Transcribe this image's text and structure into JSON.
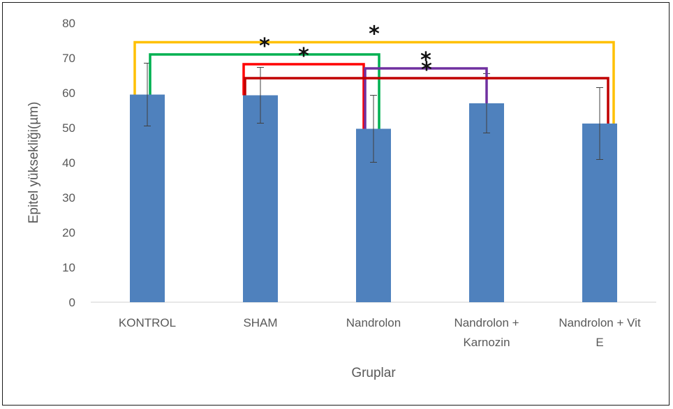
{
  "chart_data": {
    "type": "bar",
    "categories": [
      "KONTROL",
      "SHAM",
      "Nandrolon",
      "Nandrolon + Karnozin",
      "Nandrolon + Vit E"
    ],
    "category_lines": [
      [
        "KONTROL"
      ],
      [
        "SHAM"
      ],
      [
        "Nandrolon"
      ],
      [
        "Nandrolon +",
        "Karnozin"
      ],
      [
        "Nandrolon + Vit",
        "E"
      ]
    ],
    "values": [
      59.5,
      59.3,
      49.7,
      57.0,
      51.2
    ],
    "errors": [
      9.0,
      8.0,
      9.6,
      8.5,
      10.3
    ],
    "xlabel": "Gruplar",
    "ylabel": "Epitel yüksekliği(µm)",
    "ylim": [
      0,
      80
    ],
    "yticks": [
      0,
      10,
      20,
      30,
      40,
      50,
      60,
      70,
      80
    ],
    "bar_color": "#4f81bd",
    "grid": false,
    "significance": [
      {
        "from": 0,
        "to": 4,
        "level": 74.5,
        "label": "*",
        "color": "#ffc000"
      },
      {
        "from": 0,
        "to": 2,
        "level": 71.0,
        "label": "*",
        "color": "#00b050"
      },
      {
        "from": 1,
        "to": 2,
        "level": 68.2,
        "label": "*",
        "color": "#ff0000"
      },
      {
        "from": 2,
        "to": 3,
        "level": 67.0,
        "label": "*",
        "color": "#7030a0"
      },
      {
        "from": 1,
        "to": 4,
        "level": 64.2,
        "label": "*",
        "color": "#c00000"
      }
    ]
  }
}
